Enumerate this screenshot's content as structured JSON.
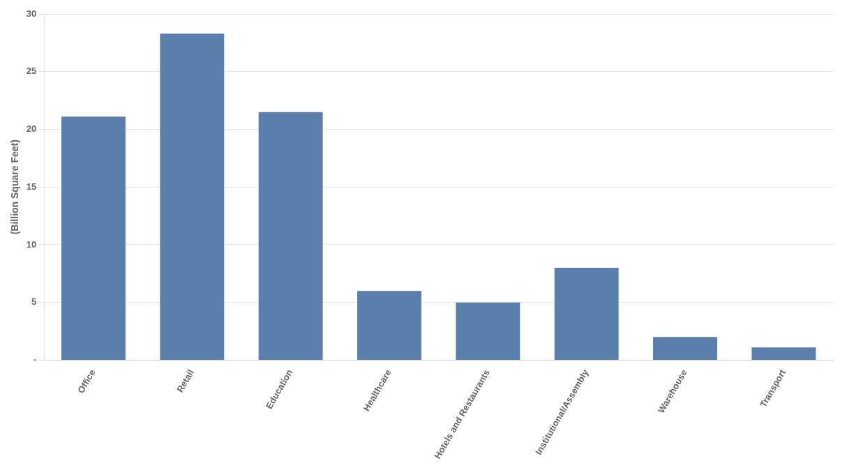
{
  "chart_data": {
    "type": "bar",
    "categories": [
      "Office",
      "Retail",
      "Education",
      "Healthcare",
      "Hotels and Restaurants",
      "Institutional/Assembly",
      "Warehouse",
      "Transport"
    ],
    "values": [
      21.1,
      28.3,
      21.5,
      6.0,
      5.0,
      8.0,
      2.0,
      1.1
    ],
    "color": "#5b7fad",
    "ylabel": "(Billion Square Feet)",
    "ylim": [
      0,
      30
    ],
    "yticks": [
      {
        "value": 0,
        "label": "-"
      },
      5,
      10,
      15,
      20,
      25,
      30
    ],
    "grid": true
  }
}
